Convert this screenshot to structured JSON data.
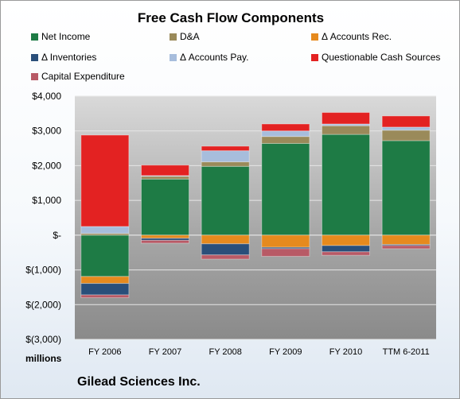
{
  "company": "Gilead Sciences Inc.",
  "chart_data": {
    "type": "bar",
    "stacked": true,
    "title": "Free Cash Flow Components",
    "ylabel": "millions",
    "ylim": [
      -3000,
      4000
    ],
    "yticks": [
      4000,
      3000,
      2000,
      1000,
      0,
      -1000,
      -2000,
      -3000
    ],
    "ytick_labels": [
      "$4,000",
      "$3,000",
      "$2,000",
      "$1,000",
      "$-",
      "$(1,000)",
      "$(2,000)",
      "$(3,000)"
    ],
    "categories": [
      "FY 2006",
      "FY 2007",
      "FY 2008",
      "FY 2009",
      "FY 2010",
      "TTM 6-2011"
    ],
    "legend_position": "top",
    "series": [
      {
        "name": "Net Income",
        "color": "#1e7b45",
        "values": [
          -1190,
          1615,
          1980,
          2640,
          2900,
          2720
        ]
      },
      {
        "name": "D&A",
        "color": "#9a8a5a",
        "values": [
          50,
          80,
          130,
          200,
          250,
          300
        ]
      },
      {
        "name": "Δ Accounts Rec.",
        "color": "#e68a1e",
        "values": [
          -200,
          -90,
          -250,
          -350,
          -300,
          -270
        ]
      },
      {
        "name": "Δ Inventories",
        "color": "#2a4f7a",
        "values": [
          -330,
          -60,
          -320,
          -40,
          -180,
          -30
        ]
      },
      {
        "name": "Δ Accounts Pay.",
        "color": "#a7bddc",
        "values": [
          200,
          20,
          320,
          160,
          50,
          90
        ]
      },
      {
        "name": "Questionable Cash Sources",
        "color": "#e32222",
        "values": [
          2630,
          300,
          130,
          200,
          330,
          320
        ]
      },
      {
        "name": "Capital Expenditure",
        "color": "#b85a66",
        "values": [
          -80,
          -80,
          -120,
          -220,
          -100,
          -90
        ]
      }
    ]
  }
}
